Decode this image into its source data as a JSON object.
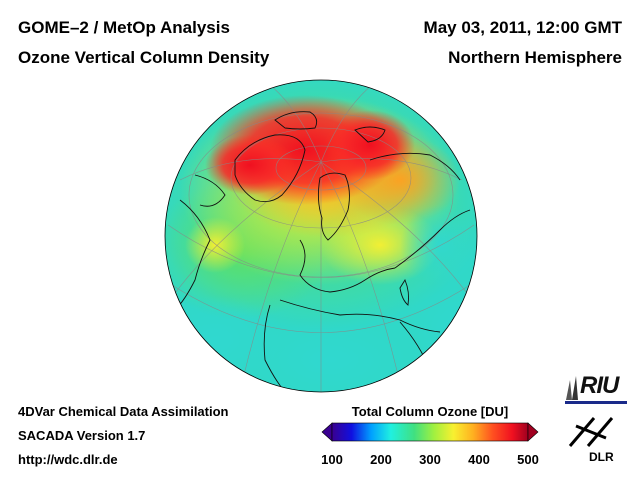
{
  "header": {
    "title_line1": "GOME–2 / MetOp Analysis",
    "title_line2": "Ozone Vertical Column Density",
    "date": "May 03, 2011, 12:00 GMT",
    "region": "Northern Hemisphere"
  },
  "footer": {
    "line1": "4DVar Chemical Data Assimilation",
    "line2": "SACADA Version 1.7",
    "line3": "http://wdc.dlr.de"
  },
  "colorbar": {
    "title": "Total Column Ozone [DU]",
    "ticks": [
      "100",
      "200",
      "300",
      "400",
      "500"
    ],
    "min": 100,
    "max": 500,
    "colors": [
      "#3a0090",
      "#1010e0",
      "#00a0ff",
      "#20f0e0",
      "#40e080",
      "#a0f040",
      "#f8f030",
      "#ffb020",
      "#ff5020",
      "#f01020",
      "#a00020"
    ]
  },
  "logos": {
    "riu": "RIU",
    "dlr": "DLR"
  }
}
